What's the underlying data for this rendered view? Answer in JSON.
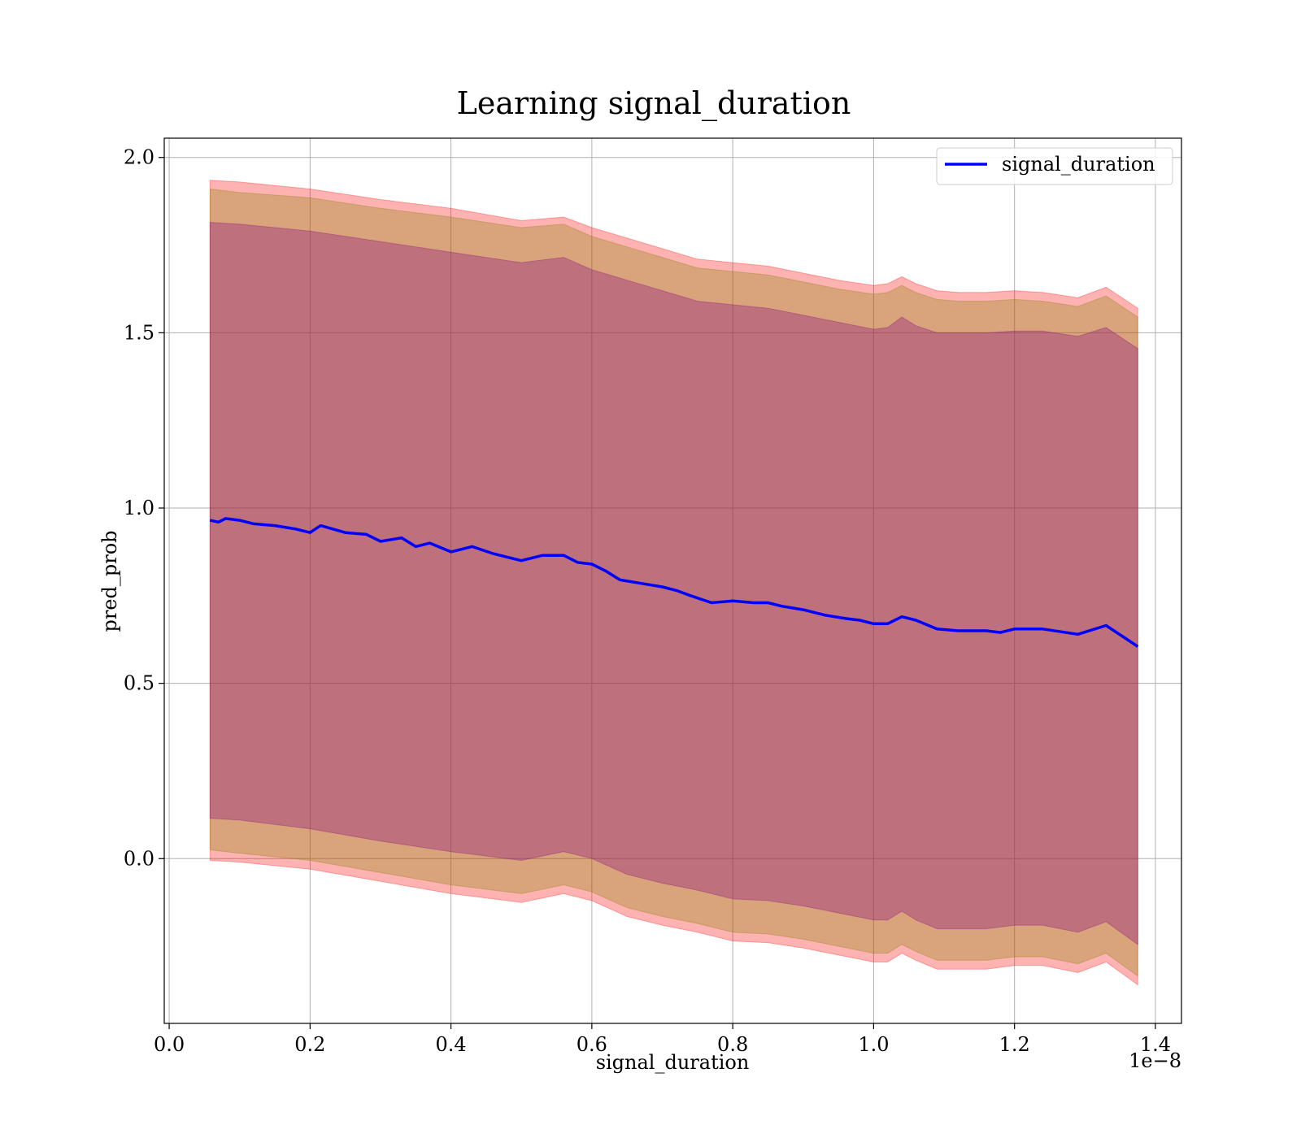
{
  "chart_data": {
    "type": "line",
    "title": "Learning signal_duration",
    "xlabel": "signal_duration",
    "ylabel": "pred_prob",
    "x_offset_text": "1e−8",
    "x_scale": 1e-08,
    "xlim": [
      -0.007,
      1.437
    ],
    "ylim": [
      -0.47,
      2.055
    ],
    "grid": true,
    "legend": {
      "position": "top-right",
      "entries": [
        "signal_duration"
      ]
    },
    "x_ticks": [
      {
        "value": 0.0,
        "label": "0.0"
      },
      {
        "value": 0.2,
        "label": "0.2"
      },
      {
        "value": 0.4,
        "label": "0.4"
      },
      {
        "value": 0.6,
        "label": "0.6"
      },
      {
        "value": 0.8,
        "label": "0.8"
      },
      {
        "value": 1.0,
        "label": "1.0"
      },
      {
        "value": 1.2,
        "label": "1.2"
      },
      {
        "value": 1.4,
        "label": "1.4"
      }
    ],
    "y_ticks": [
      {
        "value": 0.0,
        "label": "0.0"
      },
      {
        "value": 0.5,
        "label": "0.5"
      },
      {
        "value": 1.0,
        "label": "1.0"
      },
      {
        "value": 1.5,
        "label": "1.5"
      },
      {
        "value": 2.0,
        "label": "2.0"
      }
    ],
    "series": [
      {
        "name": "signal_duration",
        "color": "#0000ff",
        "x": [
          0.058,
          0.07,
          0.08,
          0.1,
          0.12,
          0.15,
          0.18,
          0.2,
          0.215,
          0.25,
          0.28,
          0.3,
          0.33,
          0.35,
          0.37,
          0.4,
          0.43,
          0.46,
          0.5,
          0.53,
          0.56,
          0.58,
          0.6,
          0.62,
          0.64,
          0.67,
          0.7,
          0.72,
          0.74,
          0.77,
          0.8,
          0.83,
          0.85,
          0.87,
          0.9,
          0.93,
          0.96,
          0.98,
          1.0,
          1.02,
          1.04,
          1.06,
          1.09,
          1.12,
          1.16,
          1.18,
          1.2,
          1.24,
          1.29,
          1.33,
          1.375
        ],
        "y": [
          0.965,
          0.96,
          0.97,
          0.965,
          0.955,
          0.95,
          0.94,
          0.93,
          0.95,
          0.93,
          0.925,
          0.905,
          0.915,
          0.89,
          0.9,
          0.875,
          0.89,
          0.87,
          0.85,
          0.865,
          0.865,
          0.845,
          0.84,
          0.82,
          0.795,
          0.785,
          0.775,
          0.765,
          0.75,
          0.73,
          0.735,
          0.73,
          0.73,
          0.72,
          0.71,
          0.695,
          0.685,
          0.68,
          0.67,
          0.67,
          0.69,
          0.68,
          0.655,
          0.65,
          0.65,
          0.645,
          0.655,
          0.655,
          0.64,
          0.665,
          0.605
        ]
      }
    ],
    "bands": [
      {
        "color": "#ff0000",
        "opacity": 0.3,
        "x": [
          0.058,
          0.1,
          0.2,
          0.3,
          0.4,
          0.5,
          0.56,
          0.6,
          0.65,
          0.7,
          0.75,
          0.8,
          0.85,
          0.9,
          0.95,
          1.0,
          1.02,
          1.04,
          1.06,
          1.09,
          1.12,
          1.16,
          1.2,
          1.24,
          1.29,
          1.33,
          1.375
        ],
        "upper": [
          1.935,
          1.93,
          1.91,
          1.88,
          1.855,
          1.82,
          1.83,
          1.8,
          1.77,
          1.74,
          1.71,
          1.7,
          1.69,
          1.67,
          1.65,
          1.635,
          1.64,
          1.66,
          1.64,
          1.62,
          1.615,
          1.615,
          1.62,
          1.615,
          1.6,
          1.63,
          1.57
        ],
        "lower": [
          -0.005,
          -0.01,
          -0.03,
          -0.065,
          -0.1,
          -0.125,
          -0.1,
          -0.12,
          -0.165,
          -0.19,
          -0.21,
          -0.235,
          -0.24,
          -0.255,
          -0.275,
          -0.295,
          -0.295,
          -0.27,
          -0.29,
          -0.315,
          -0.315,
          -0.315,
          -0.305,
          -0.305,
          -0.325,
          -0.295,
          -0.36
        ]
      },
      {
        "color": "#808000",
        "opacity": 0.3,
        "x": [
          0.058,
          0.1,
          0.2,
          0.3,
          0.4,
          0.5,
          0.56,
          0.6,
          0.65,
          0.7,
          0.75,
          0.8,
          0.85,
          0.9,
          0.95,
          1.0,
          1.02,
          1.04,
          1.06,
          1.09,
          1.12,
          1.16,
          1.2,
          1.24,
          1.29,
          1.33,
          1.375
        ],
        "upper": [
          1.91,
          1.9,
          1.885,
          1.855,
          1.83,
          1.8,
          1.81,
          1.775,
          1.745,
          1.715,
          1.685,
          1.675,
          1.665,
          1.645,
          1.625,
          1.61,
          1.615,
          1.635,
          1.615,
          1.595,
          1.59,
          1.59,
          1.595,
          1.59,
          1.575,
          1.605,
          1.545
        ],
        "lower": [
          0.025,
          0.015,
          -0.005,
          -0.04,
          -0.075,
          -0.1,
          -0.075,
          -0.095,
          -0.14,
          -0.165,
          -0.185,
          -0.21,
          -0.215,
          -0.23,
          -0.25,
          -0.27,
          -0.27,
          -0.245,
          -0.265,
          -0.29,
          -0.29,
          -0.29,
          -0.28,
          -0.28,
          -0.3,
          -0.27,
          -0.335
        ]
      },
      {
        "color": "#800080",
        "opacity": 0.3,
        "x": [
          0.058,
          0.1,
          0.2,
          0.3,
          0.4,
          0.5,
          0.56,
          0.6,
          0.65,
          0.7,
          0.75,
          0.8,
          0.85,
          0.9,
          0.95,
          1.0,
          1.02,
          1.04,
          1.06,
          1.09,
          1.12,
          1.16,
          1.2,
          1.24,
          1.29,
          1.33,
          1.375
        ],
        "upper": [
          1.815,
          1.81,
          1.79,
          1.76,
          1.73,
          1.7,
          1.715,
          1.68,
          1.65,
          1.62,
          1.59,
          1.58,
          1.57,
          1.55,
          1.53,
          1.51,
          1.515,
          1.545,
          1.52,
          1.5,
          1.5,
          1.5,
          1.505,
          1.505,
          1.49,
          1.515,
          1.455
        ],
        "lower": [
          0.115,
          0.11,
          0.085,
          0.05,
          0.02,
          -0.005,
          0.02,
          0.0,
          -0.045,
          -0.07,
          -0.09,
          -0.115,
          -0.12,
          -0.135,
          -0.155,
          -0.175,
          -0.175,
          -0.15,
          -0.175,
          -0.2,
          -0.2,
          -0.2,
          -0.19,
          -0.19,
          -0.21,
          -0.18,
          -0.245
        ]
      }
    ]
  }
}
